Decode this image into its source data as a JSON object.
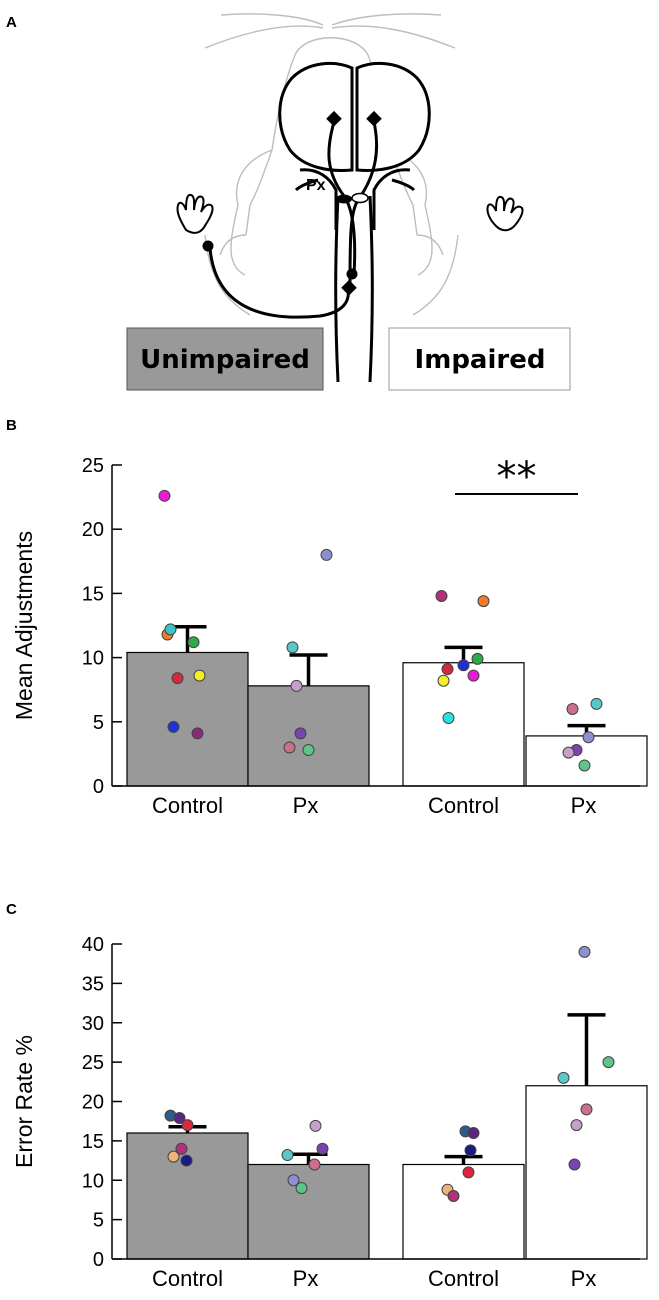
{
  "panel_a": {
    "letter": "A",
    "px_label": "Px",
    "left_box": "Unimpaired",
    "right_box": "Impaired",
    "left_fill": "#999999",
    "right_fill": "#ffffff"
  },
  "chart_data": [
    {
      "panel": "B",
      "type": "bar",
      "ylabel": "Mean Adjustments",
      "ylim": [
        0,
        25
      ],
      "yticks": [
        0,
        5,
        10,
        15,
        20,
        25
      ],
      "categories": [
        "Control",
        "Px",
        "Control",
        "Px"
      ],
      "groups": [
        "Unimpaired",
        "Unimpaired",
        "Impaired",
        "Impaired"
      ],
      "values": [
        10.4,
        7.8,
        9.6,
        3.9
      ],
      "errors": [
        2.0,
        2.4,
        1.2,
        0.8
      ],
      "bar_colors": [
        "#999999",
        "#999999",
        "#ffffff",
        "#ffffff"
      ],
      "points": [
        [
          {
            "y": 22.6,
            "c": "#e81cd6"
          },
          {
            "y": 11.8,
            "c": "#ef7b27"
          },
          {
            "y": 12.2,
            "c": "#39c5c5"
          },
          {
            "y": 11.2,
            "c": "#2eaa48"
          },
          {
            "y": 8.6,
            "c": "#f3ee29"
          },
          {
            "y": 8.4,
            "c": "#d8283b"
          },
          {
            "y": 4.6,
            "c": "#2030d8"
          },
          {
            "y": 4.1,
            "c": "#8a2a7a"
          }
        ],
        [
          {
            "y": 18.0,
            "c": "#8e8fd0"
          },
          {
            "y": 10.8,
            "c": "#5bc8c8"
          },
          {
            "y": 7.8,
            "c": "#c3a1c8"
          },
          {
            "y": 4.1,
            "c": "#7844b0"
          },
          {
            "y": 3.0,
            "c": "#cc6f8a"
          },
          {
            "y": 2.8,
            "c": "#5ec48a"
          }
        ],
        [
          {
            "y": 14.4,
            "c": "#ef7b27"
          },
          {
            "y": 14.8,
            "c": "#b0307a"
          },
          {
            "y": 9.9,
            "c": "#2eaa48"
          },
          {
            "y": 9.4,
            "c": "#2030d8"
          },
          {
            "y": 9.1,
            "c": "#d8283b"
          },
          {
            "y": 8.6,
            "c": "#e81cd6"
          },
          {
            "y": 8.2,
            "c": "#f3ee29"
          },
          {
            "y": 5.3,
            "c": "#2ce0e0"
          }
        ],
        [
          {
            "y": 6.4,
            "c": "#5bc8c8"
          },
          {
            "y": 6.0,
            "c": "#cc6f8a"
          },
          {
            "y": 3.8,
            "c": "#8e8fd0"
          },
          {
            "y": 2.8,
            "c": "#7844b0"
          },
          {
            "y": 2.6,
            "c": "#c3a1c8"
          },
          {
            "y": 1.6,
            "c": "#5ec48a"
          }
        ]
      ],
      "significance": {
        "label": "**",
        "between": [
          2,
          3
        ]
      }
    },
    {
      "panel": "C",
      "type": "bar",
      "ylabel": "Error Rate %",
      "ylim": [
        0,
        40
      ],
      "yticks": [
        0,
        5,
        10,
        15,
        20,
        25,
        30,
        35,
        40
      ],
      "categories": [
        "Control",
        "Px",
        "Control",
        "Px"
      ],
      "groups": [
        "Unimpaired",
        "Unimpaired",
        "Impaired",
        "Impaired"
      ],
      "values": [
        16.0,
        12.0,
        12.0,
        22.0
      ],
      "errors": [
        0.8,
        1.3,
        1.0,
        9.0
      ],
      "bar_colors": [
        "#999999",
        "#999999",
        "#ffffff",
        "#ffffff"
      ],
      "points": [
        [
          {
            "y": 18.2,
            "c": "#2b5d8c"
          },
          {
            "y": 17.9,
            "c": "#5a2780"
          },
          {
            "y": 17.0,
            "c": "#d8283b"
          },
          {
            "y": 14.0,
            "c": "#b0307a"
          },
          {
            "y": 13.0,
            "c": "#f0b27a"
          },
          {
            "y": 12.5,
            "c": "#1a1a80"
          }
        ],
        [
          {
            "y": 16.9,
            "c": "#c3a1c8"
          },
          {
            "y": 13.2,
            "c": "#5bc8c8"
          },
          {
            "y": 14.0,
            "c": "#7844b0"
          },
          {
            "y": 12.0,
            "c": "#cc6f8a"
          },
          {
            "y": 10.0,
            "c": "#8e8fd0"
          },
          {
            "y": 9.0,
            "c": "#5ec48a"
          }
        ],
        [
          {
            "y": 16.2,
            "c": "#2b5d8c"
          },
          {
            "y": 16.0,
            "c": "#5a2780"
          },
          {
            "y": 13.8,
            "c": "#1a1a80"
          },
          {
            "y": 11.0,
            "c": "#d8283b"
          },
          {
            "y": 8.8,
            "c": "#f0b27a"
          },
          {
            "y": 8.0,
            "c": "#b0307a"
          }
        ],
        [
          {
            "y": 39.0,
            "c": "#8e8fd0"
          },
          {
            "y": 25.0,
            "c": "#5ec48a"
          },
          {
            "y": 23.0,
            "c": "#5bc8c8"
          },
          {
            "y": 19.0,
            "c": "#cc6f8a"
          },
          {
            "y": 17.0,
            "c": "#c3a1c8"
          },
          {
            "y": 12.0,
            "c": "#7844b0"
          }
        ]
      ]
    }
  ]
}
